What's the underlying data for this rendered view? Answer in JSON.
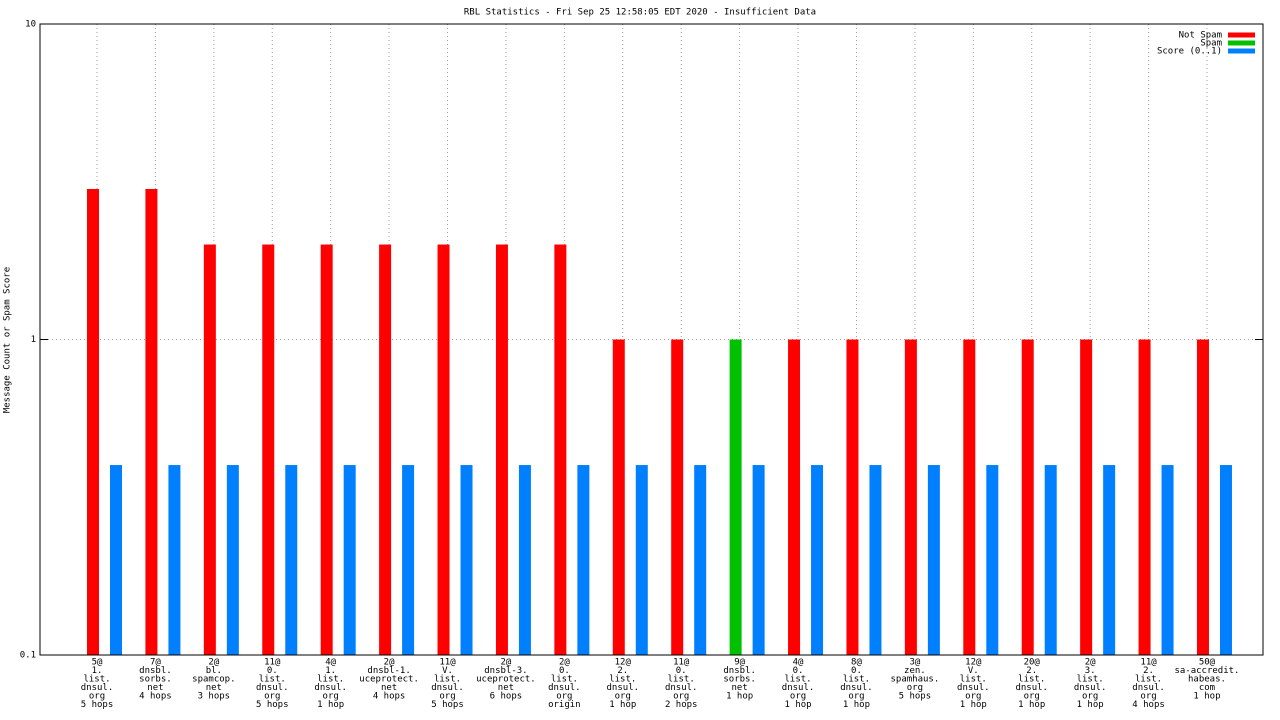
{
  "chart_data": {
    "type": "bar",
    "title": "RBL Statistics - Fri Sep 25 12:58:05 EDT 2020 - Insufficient Data",
    "y_label": "Message Count or Spam Score",
    "log_scale": true,
    "grid": true,
    "legend_position": "top-right",
    "ylim": [
      0.1,
      10
    ],
    "yticks": [
      0.1,
      1,
      10
    ],
    "categories": [
      [
        "5@",
        "1.",
        "list.",
        "dnsul.",
        "org",
        "5 hops"
      ],
      [
        "7@",
        "dnsbl.",
        "sorbs.",
        "net",
        "4 hops"
      ],
      [
        "2@",
        "bl.",
        "spamcop.",
        "net",
        "3 hops"
      ],
      [
        "11@",
        "0.",
        "list.",
        "dnsul.",
        "org",
        "5 hops"
      ],
      [
        "4@",
        "1.",
        "list.",
        "dnsul.",
        "org",
        "1 hop"
      ],
      [
        "2@",
        "dnsbl-1.",
        "uceprotect.",
        "net",
        "4 hops"
      ],
      [
        "11@",
        "V.",
        "list.",
        "dnsul.",
        "org",
        "5 hops"
      ],
      [
        "2@",
        "dnsbl-3.",
        "uceprotect.",
        "net",
        "6 hops"
      ],
      [
        "2@",
        "0.",
        "list.",
        "dnsul.",
        "org",
        "origin"
      ],
      [
        "12@",
        "2.",
        "list.",
        "dnsul.",
        "org",
        "1 hop"
      ],
      [
        "11@",
        "0.",
        "list.",
        "dnsul.",
        "org",
        "2 hops"
      ],
      [
        "9@",
        "dnsbl.",
        "sorbs.",
        "net",
        "1 hop"
      ],
      [
        "4@",
        "0.",
        "list.",
        "dnsul.",
        "org",
        "1 hop"
      ],
      [
        "8@",
        "0.",
        "list.",
        "dnsul.",
        "org",
        "1 hop"
      ],
      [
        "3@",
        "zen.",
        "spamhaus.",
        "org",
        "5 hops"
      ],
      [
        "12@",
        "V.",
        "list.",
        "dnsul.",
        "org",
        "1 hop"
      ],
      [
        "20@",
        "2.",
        "list.",
        "dnsul.",
        "org",
        "1 hop"
      ],
      [
        "2@",
        "3.",
        "list.",
        "dnsul.",
        "org",
        "1 hop"
      ],
      [
        "11@",
        "2.",
        "list.",
        "dnsul.",
        "org",
        "4 hops"
      ],
      [
        "50@",
        "sa-accredit.",
        "habeas.",
        "com",
        "1 hop"
      ]
    ],
    "series": [
      {
        "name": "Not Spam",
        "color": "#ff0000",
        "values": [
          3,
          3,
          2,
          2,
          2,
          2,
          2,
          2,
          2,
          1,
          1,
          null,
          1,
          1,
          1,
          1,
          1,
          1,
          1,
          1
        ]
      },
      {
        "name": "Spam",
        "color": "#00c000",
        "values": [
          null,
          null,
          null,
          null,
          null,
          null,
          null,
          null,
          null,
          null,
          null,
          1,
          null,
          null,
          null,
          null,
          null,
          null,
          null,
          null
        ]
      },
      {
        "name": "Score (0..1)",
        "color": "#0080ff",
        "values": [
          0.4,
          0.4,
          0.4,
          0.4,
          0.4,
          0.4,
          0.4,
          0.4,
          0.4,
          0.4,
          0.4,
          0.4,
          0.4,
          0.4,
          0.4,
          0.4,
          0.4,
          0.4,
          0.4,
          0.4
        ]
      }
    ]
  }
}
